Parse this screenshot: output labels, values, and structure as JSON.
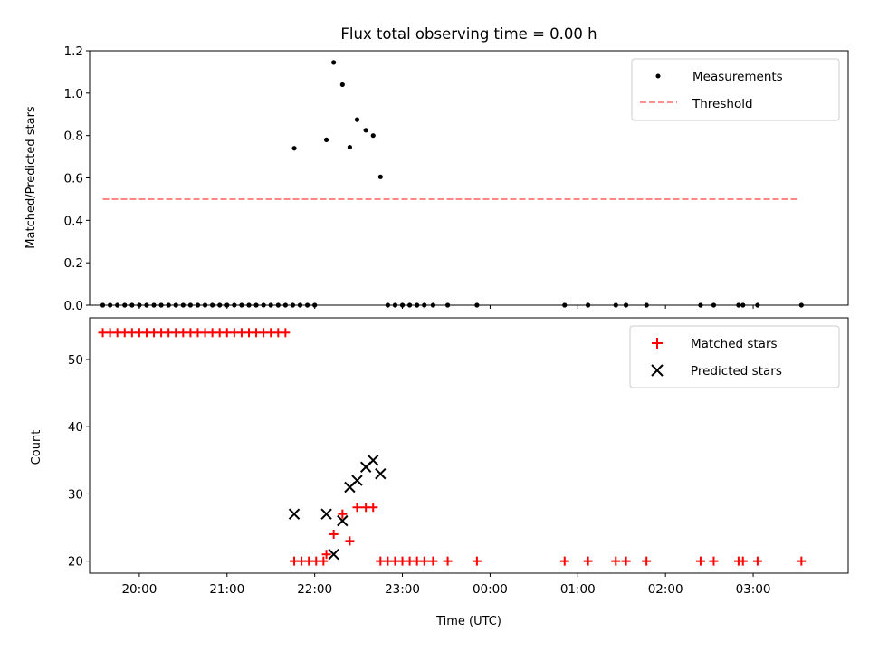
{
  "chart_data": [
    {
      "type": "scatter",
      "title": "Flux total observing time = 0.00 h",
      "ylabel": "Matched/Predicted stars",
      "xlabel": "",
      "xlim": [
        "19:26",
        "04:05"
      ],
      "ylim": [
        0,
        1.2
      ],
      "yticks": [
        "0.0",
        "0.2",
        "0.4",
        "0.6",
        "0.8",
        "1.0",
        "1.2"
      ],
      "legend_position": "top-right",
      "series": [
        {
          "name": "Measurements",
          "color": "#000000",
          "points": [
            {
              "x": "19:35",
              "y": 0
            },
            {
              "x": "19:40",
              "y": 0
            },
            {
              "x": "19:45",
              "y": 0
            },
            {
              "x": "19:50",
              "y": 0
            },
            {
              "x": "19:55",
              "y": 0
            },
            {
              "x": "20:00",
              "y": 0
            },
            {
              "x": "20:05",
              "y": 0
            },
            {
              "x": "20:10",
              "y": 0
            },
            {
              "x": "20:15",
              "y": 0
            },
            {
              "x": "20:20",
              "y": 0
            },
            {
              "x": "20:25",
              "y": 0
            },
            {
              "x": "20:30",
              "y": 0
            },
            {
              "x": "20:35",
              "y": 0
            },
            {
              "x": "20:40",
              "y": 0
            },
            {
              "x": "20:45",
              "y": 0
            },
            {
              "x": "20:50",
              "y": 0
            },
            {
              "x": "20:55",
              "y": 0
            },
            {
              "x": "21:00",
              "y": 0
            },
            {
              "x": "21:05",
              "y": 0
            },
            {
              "x": "21:10",
              "y": 0
            },
            {
              "x": "21:15",
              "y": 0
            },
            {
              "x": "21:20",
              "y": 0
            },
            {
              "x": "21:25",
              "y": 0
            },
            {
              "x": "21:30",
              "y": 0
            },
            {
              "x": "21:35",
              "y": 0
            },
            {
              "x": "21:40",
              "y": 0
            },
            {
              "x": "21:45",
              "y": 0
            },
            {
              "x": "21:50",
              "y": 0
            },
            {
              "x": "21:55",
              "y": 0
            },
            {
              "x": "22:00",
              "y": 0
            },
            {
              "x": "21:46",
              "y": 0.74
            },
            {
              "x": "22:08",
              "y": 0.78
            },
            {
              "x": "22:13",
              "y": 1.145
            },
            {
              "x": "22:19",
              "y": 1.04
            },
            {
              "x": "22:24",
              "y": 0.745
            },
            {
              "x": "22:29",
              "y": 0.875
            },
            {
              "x": "22:35",
              "y": 0.825
            },
            {
              "x": "22:40",
              "y": 0.8
            },
            {
              "x": "22:45",
              "y": 0.605
            },
            {
              "x": "22:50",
              "y": 0
            },
            {
              "x": "22:55",
              "y": 0
            },
            {
              "x": "23:00",
              "y": 0
            },
            {
              "x": "23:05",
              "y": 0
            },
            {
              "x": "23:10",
              "y": 0
            },
            {
              "x": "23:15",
              "y": 0
            },
            {
              "x": "23:21",
              "y": 0
            },
            {
              "x": "23:31",
              "y": 0
            },
            {
              "x": "23:51",
              "y": 0
            },
            {
              "x": "00:51",
              "y": 0
            },
            {
              "x": "01:07",
              "y": 0
            },
            {
              "x": "01:26",
              "y": 0
            },
            {
              "x": "01:33",
              "y": 0
            },
            {
              "x": "01:47",
              "y": 0
            },
            {
              "x": "02:24",
              "y": 0
            },
            {
              "x": "02:33",
              "y": 0
            },
            {
              "x": "02:50",
              "y": 0
            },
            {
              "x": "02:53",
              "y": 0
            },
            {
              "x": "03:03",
              "y": 0
            },
            {
              "x": "03:33",
              "y": 0
            }
          ]
        },
        {
          "name": "Threshold",
          "color": "#ff7f7f",
          "points": [
            {
              "x": "19:35",
              "y": 0.5
            },
            {
              "x": "03:31",
              "y": 0.5
            }
          ]
        }
      ]
    },
    {
      "type": "scatter",
      "title": "",
      "xlabel": "Time (UTC)",
      "ylabel": "Count",
      "xlim": [
        "19:26",
        "04:05"
      ],
      "ylim": [
        18.2,
        56.2
      ],
      "yticks": [
        "20",
        "30",
        "40",
        "50"
      ],
      "xticks": [
        "20:00",
        "21:00",
        "22:00",
        "23:00",
        "00:00",
        "01:00",
        "02:00",
        "03:00"
      ],
      "legend_position": "top-right",
      "series": [
        {
          "name": "Matched stars",
          "color": "#ff0000",
          "points": [
            {
              "x": "19:35",
              "y": 54
            },
            {
              "x": "19:40",
              "y": 54
            },
            {
              "x": "19:45",
              "y": 54
            },
            {
              "x": "19:50",
              "y": 54
            },
            {
              "x": "19:55",
              "y": 54
            },
            {
              "x": "20:00",
              "y": 54
            },
            {
              "x": "20:05",
              "y": 54
            },
            {
              "x": "20:10",
              "y": 54
            },
            {
              "x": "20:15",
              "y": 54
            },
            {
              "x": "20:20",
              "y": 54
            },
            {
              "x": "20:25",
              "y": 54
            },
            {
              "x": "20:30",
              "y": 54
            },
            {
              "x": "20:35",
              "y": 54
            },
            {
              "x": "20:40",
              "y": 54
            },
            {
              "x": "20:45",
              "y": 54
            },
            {
              "x": "20:50",
              "y": 54
            },
            {
              "x": "20:55",
              "y": 54
            },
            {
              "x": "21:00",
              "y": 54
            },
            {
              "x": "21:05",
              "y": 54
            },
            {
              "x": "21:10",
              "y": 54
            },
            {
              "x": "21:15",
              "y": 54
            },
            {
              "x": "21:20",
              "y": 54
            },
            {
              "x": "21:25",
              "y": 54
            },
            {
              "x": "21:30",
              "y": 54
            },
            {
              "x": "21:35",
              "y": 54
            },
            {
              "x": "21:40",
              "y": 54
            },
            {
              "x": "21:46",
              "y": 20
            },
            {
              "x": "21:51",
              "y": 20
            },
            {
              "x": "21:56",
              "y": 20
            },
            {
              "x": "22:01",
              "y": 20
            },
            {
              "x": "22:06",
              "y": 20
            },
            {
              "x": "22:08",
              "y": 21
            },
            {
              "x": "22:13",
              "y": 24
            },
            {
              "x": "22:19",
              "y": 27
            },
            {
              "x": "22:24",
              "y": 23
            },
            {
              "x": "22:29",
              "y": 28
            },
            {
              "x": "22:35",
              "y": 28
            },
            {
              "x": "22:40",
              "y": 28
            },
            {
              "x": "22:45",
              "y": 20
            },
            {
              "x": "22:50",
              "y": 20
            },
            {
              "x": "22:55",
              "y": 20
            },
            {
              "x": "23:00",
              "y": 20
            },
            {
              "x": "23:05",
              "y": 20
            },
            {
              "x": "23:10",
              "y": 20
            },
            {
              "x": "23:15",
              "y": 20
            },
            {
              "x": "23:21",
              "y": 20
            },
            {
              "x": "23:31",
              "y": 20
            },
            {
              "x": "23:51",
              "y": 20
            },
            {
              "x": "00:51",
              "y": 20
            },
            {
              "x": "01:07",
              "y": 20
            },
            {
              "x": "01:26",
              "y": 20
            },
            {
              "x": "01:33",
              "y": 20
            },
            {
              "x": "01:47",
              "y": 20
            },
            {
              "x": "02:24",
              "y": 20
            },
            {
              "x": "02:33",
              "y": 20
            },
            {
              "x": "02:50",
              "y": 20
            },
            {
              "x": "02:53",
              "y": 20
            },
            {
              "x": "03:03",
              "y": 20
            },
            {
              "x": "03:33",
              "y": 20
            }
          ]
        },
        {
          "name": "Predicted stars",
          "color": "#000000",
          "points": [
            {
              "x": "21:46",
              "y": 27
            },
            {
              "x": "22:08",
              "y": 27
            },
            {
              "x": "22:13",
              "y": 21
            },
            {
              "x": "22:19",
              "y": 26
            },
            {
              "x": "22:24",
              "y": 31
            },
            {
              "x": "22:29",
              "y": 32
            },
            {
              "x": "22:35",
              "y": 34
            },
            {
              "x": "22:40",
              "y": 35
            },
            {
              "x": "22:45",
              "y": 33
            }
          ]
        }
      ]
    }
  ]
}
